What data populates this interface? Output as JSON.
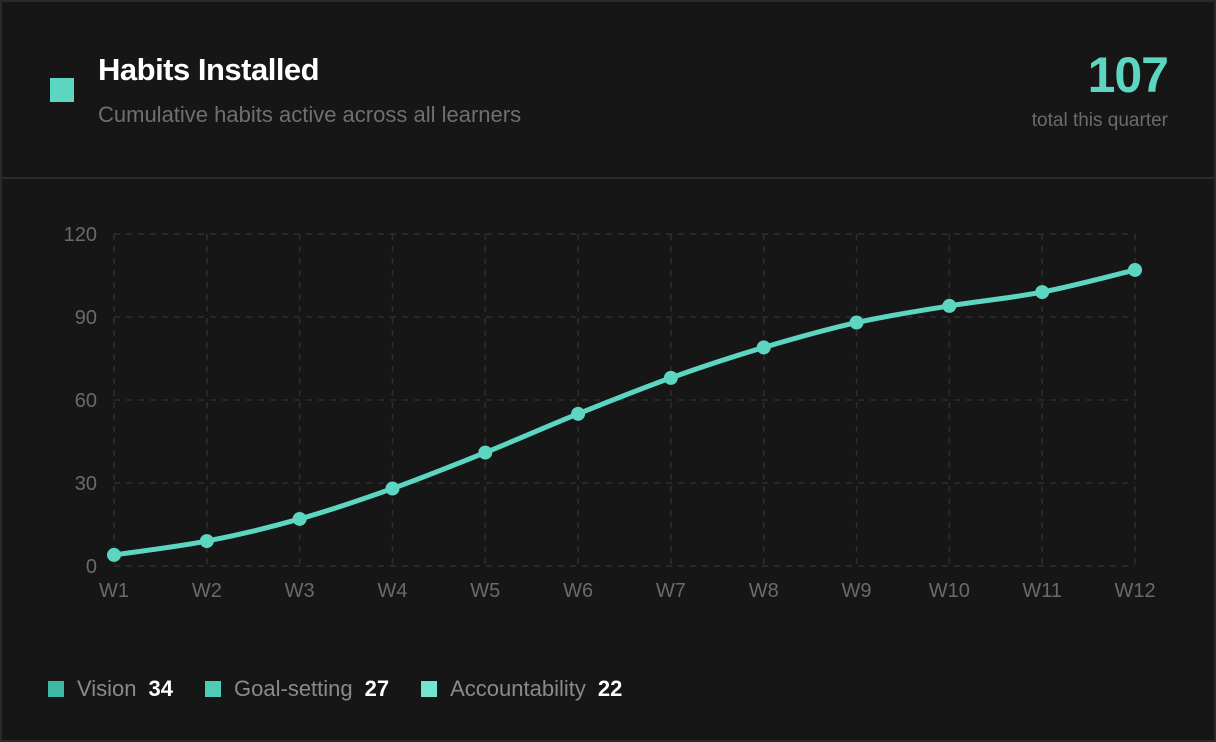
{
  "header": {
    "title": "Habits Installed",
    "subtitle": "Cumulative habits active across all learners",
    "total": "107",
    "total_label": "total this quarter"
  },
  "colors": {
    "accent": "#5dd6c1",
    "grid": "#2e2e2e",
    "legend": [
      "#3fb9a6",
      "#4fcbb6",
      "#73e4d1"
    ]
  },
  "chart_data": {
    "type": "line",
    "title": "Habits Installed",
    "xlabel": "",
    "ylabel": "",
    "categories": [
      "W1",
      "W2",
      "W3",
      "W4",
      "W5",
      "W6",
      "W7",
      "W8",
      "W9",
      "W10",
      "W11",
      "W12"
    ],
    "series": [
      {
        "values": [
          4,
          9,
          17,
          28,
          41,
          55,
          68,
          79,
          88,
          94,
          99,
          107
        ]
      }
    ],
    "yticks": [
      "0",
      "30",
      "60",
      "90",
      "120"
    ],
    "ylim": [
      0,
      120
    ],
    "grid": true,
    "legend_position": "bottom-left"
  },
  "legend": [
    {
      "label": "Vision",
      "value": "34"
    },
    {
      "label": "Goal-setting",
      "value": "27"
    },
    {
      "label": "Accountability",
      "value": "22"
    }
  ]
}
